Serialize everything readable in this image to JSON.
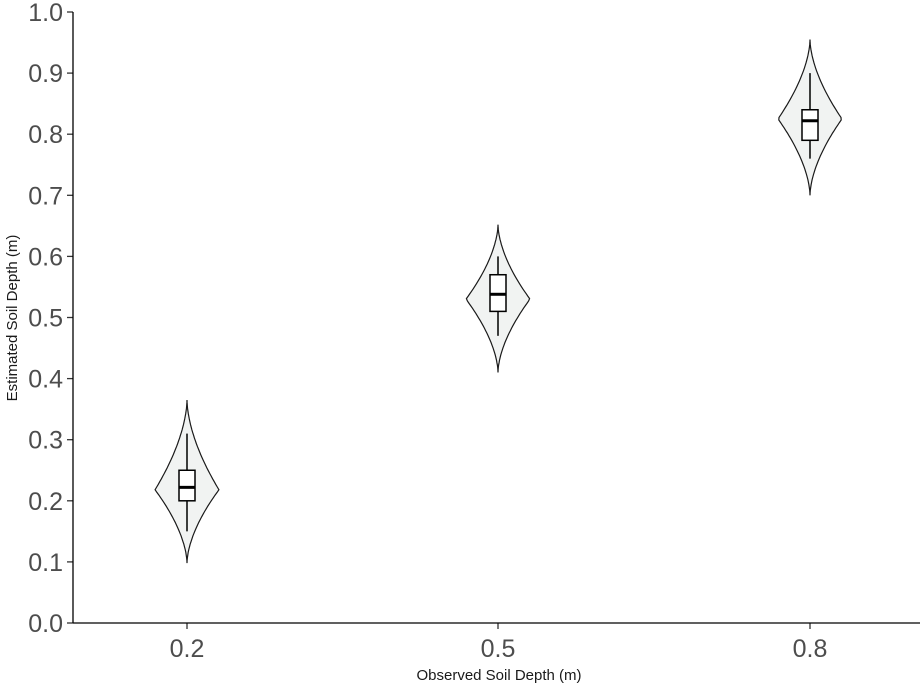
{
  "chart_data": {
    "type": "violin",
    "xlabel": "Observed Soil Depth (m)",
    "ylabel": "Estimated Soil Depth (m)",
    "categories": [
      "0.2",
      "0.5",
      "0.8"
    ],
    "ylim": [
      0.0,
      1.0
    ],
    "yticks": [
      "0.0",
      "0.1",
      "0.2",
      "0.3",
      "0.4",
      "0.5",
      "0.6",
      "0.7",
      "0.8",
      "0.9",
      "1.0"
    ],
    "grid": false,
    "groups": [
      {
        "category": "0.2",
        "violin_min": 0.098,
        "violin_max": 0.365,
        "widest_at": 0.218,
        "whisker_low": 0.15,
        "q1": 0.2,
        "median": 0.222,
        "q3": 0.25,
        "whisker_high": 0.31
      },
      {
        "category": "0.5",
        "violin_min": 0.41,
        "violin_max": 0.652,
        "widest_at": 0.53,
        "whisker_low": 0.47,
        "q1": 0.51,
        "median": 0.538,
        "q3": 0.57,
        "whisker_high": 0.6
      },
      {
        "category": "0.8",
        "violin_min": 0.7,
        "violin_max": 0.955,
        "widest_at": 0.825,
        "whisker_low": 0.76,
        "q1": 0.79,
        "median": 0.822,
        "q3": 0.84,
        "whisker_high": 0.9
      }
    ]
  }
}
